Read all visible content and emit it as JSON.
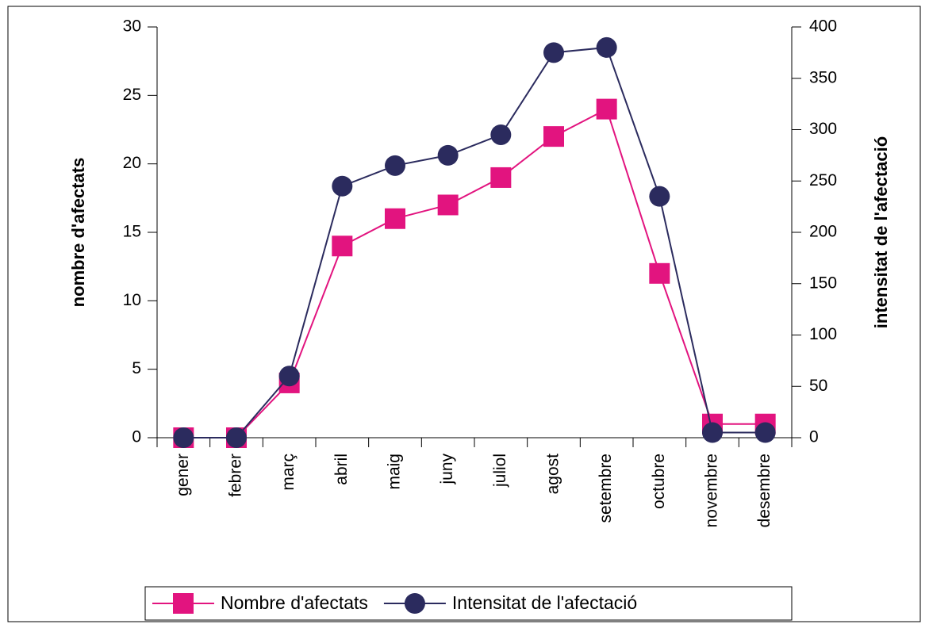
{
  "chart_data": {
    "type": "line",
    "categories": [
      "gener",
      "febrer",
      "març",
      "abril",
      "maig",
      "juny",
      "juliol",
      "agost",
      "setembre",
      "octubre",
      "novembre",
      "desembre"
    ],
    "series": [
      {
        "name": "Nombre d'afectats",
        "color": "#e2147f",
        "marker": "square",
        "values": [
          0,
          0,
          4,
          14,
          16,
          17,
          19,
          22,
          24,
          12,
          1,
          1
        ]
      },
      {
        "name": "Intensitat de l'afectació",
        "color": "#2b2b5e",
        "marker": "circle",
        "axis": "y2",
        "values": [
          0,
          0,
          60,
          245,
          265,
          275,
          295,
          375,
          380,
          235,
          5,
          5
        ]
      }
    ],
    "ylabel": "nombre d'afectats",
    "y2label": "intensitat de l'afectació",
    "ylim": [
      0,
      30
    ],
    "yticks": [
      0,
      5,
      10,
      15,
      20,
      25,
      30
    ],
    "y2lim": [
      0,
      400
    ],
    "y2ticks": [
      0,
      50,
      100,
      150,
      200,
      250,
      300,
      350,
      400
    ],
    "legend": "bottom"
  }
}
